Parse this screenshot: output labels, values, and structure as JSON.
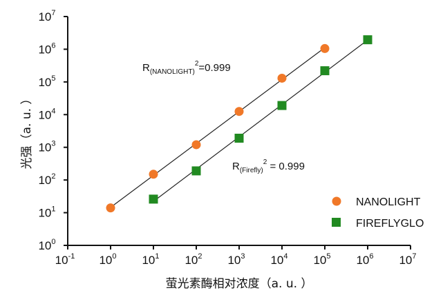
{
  "chart_data": {
    "type": "scatter",
    "xscale": "log",
    "yscale": "log",
    "xlim": [
      0.1,
      10000000
    ],
    "ylim": [
      1,
      10000000
    ],
    "x_ticks": [
      {
        "base": "10",
        "exp": "-1"
      },
      {
        "base": "10",
        "exp": "0"
      },
      {
        "base": "10",
        "exp": "1"
      },
      {
        "base": "10",
        "exp": "2"
      },
      {
        "base": "10",
        "exp": "3"
      },
      {
        "base": "10",
        "exp": "4"
      },
      {
        "base": "10",
        "exp": "5"
      },
      {
        "base": "10",
        "exp": "6"
      },
      {
        "base": "10",
        "exp": "7"
      }
    ],
    "y_ticks": [
      {
        "base": "10",
        "exp": "0"
      },
      {
        "base": "10",
        "exp": "1"
      },
      {
        "base": "10",
        "exp": "2"
      },
      {
        "base": "10",
        "exp": "3"
      },
      {
        "base": "10",
        "exp": "4"
      },
      {
        "base": "10",
        "exp": "5"
      },
      {
        "base": "10",
        "exp": "6"
      },
      {
        "base": "10",
        "exp": "7"
      }
    ],
    "xlabel": "萤光素酶相对浓度（a. u. ）",
    "ylabel": "光强（a. u. ）",
    "series": [
      {
        "name": "NANOLIGHT",
        "marker": "circle",
        "color": "#f07828",
        "x": [
          1,
          10,
          100,
          1000,
          10000,
          100000
        ],
        "y": [
          14,
          150,
          1200,
          12500,
          130000,
          1050000
        ]
      },
      {
        "name": "FIREFLYGLO",
        "marker": "square",
        "color": "#218a21",
        "x": [
          10,
          100,
          1000,
          10000,
          100000,
          1000000
        ],
        "y": [
          26,
          190,
          1900,
          19000,
          220000,
          1950000
        ]
      }
    ],
    "annotations": [
      {
        "main": "R",
        "sub": "(NANOLIGHT)",
        "sup": "2",
        "tail": "=0.999"
      },
      {
        "main": "R",
        "sub": "(Firefly)",
        "sup": "2",
        "tail": " = 0.999"
      }
    ],
    "legend_position": "bottom-right",
    "grid": false
  }
}
